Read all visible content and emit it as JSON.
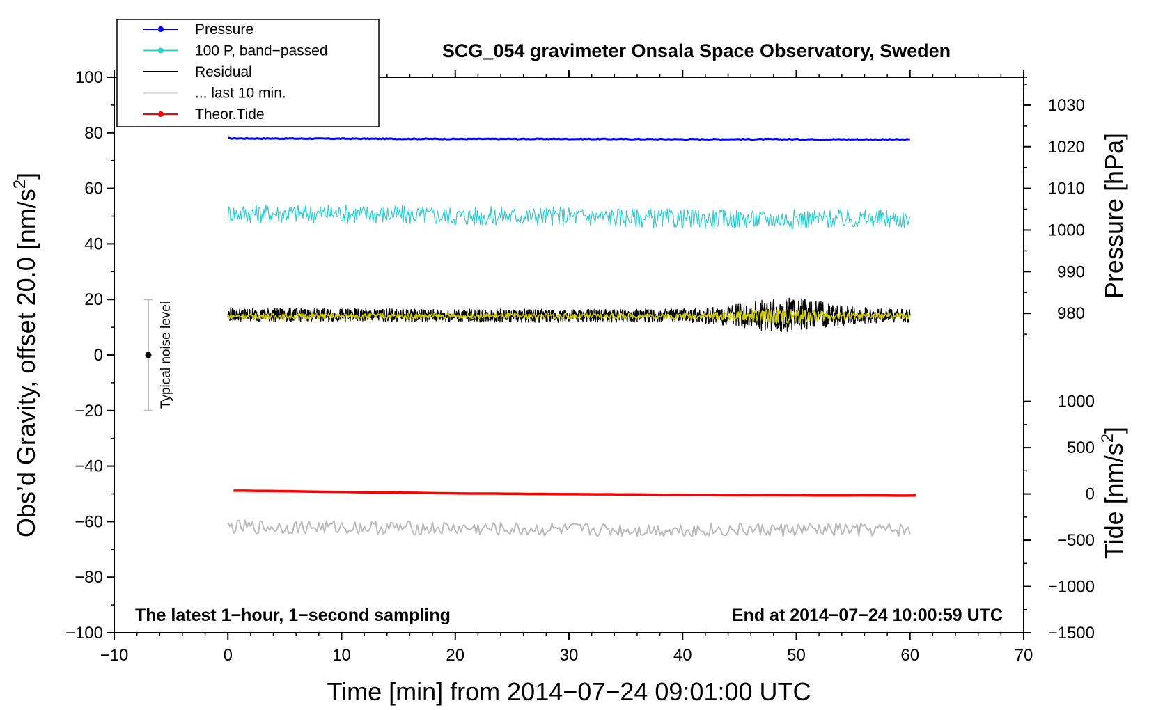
{
  "chart_data": {
    "type": "line",
    "title": "SCG_054 gravimeter Onsala Space Observatory, Sweden",
    "xlabel": "Time [min] from 2014−07−24 09:01:00 UTC",
    "ylabel_left": "Obs’d Gravity, offset 20.0 [nm/s",
    "ylabel_left_sup": "2",
    "ylabel_left_end": "]",
    "ylabel_right_pressure": "Pressure [hPa]",
    "ylabel_right_tide": "Tide [nm/s",
    "ylabel_right_tide_sup": "2",
    "ylabel_right_tide_end": "]",
    "xlim": [
      -10,
      70
    ],
    "ylim": [
      -100,
      100
    ],
    "x_ticks": [
      "−10",
      "0",
      "10",
      "20",
      "30",
      "40",
      "50",
      "60",
      "70"
    ],
    "y_ticks": [
      "−100",
      "−80",
      "−60",
      "−40",
      "−20",
      "0",
      "20",
      "40",
      "60",
      "80",
      "100"
    ],
    "pressure_axis": {
      "ticks": [
        "980",
        "990",
        "1000",
        "1010",
        "1020",
        "1030"
      ],
      "range": [
        980,
        1030
      ]
    },
    "tide_axis": {
      "ticks": [
        "−1500",
        "−1000",
        "−500",
        "0",
        "500",
        "1000"
      ],
      "range": [
        -1500,
        1000
      ]
    },
    "annotation_left": "The latest 1−hour, 1−second sampling",
    "annotation_right": "End at 2014−07−24 10:00:59 UTC",
    "noise_bar": {
      "label": "Typical noise level",
      "x": -7,
      "center": 0,
      "low": -20,
      "high": 20
    },
    "legend": {
      "position": "top-left",
      "entries": [
        {
          "label": "Pressure",
          "color": "#0000ff",
          "marker": true
        },
        {
          "label": "100 P, band−passed",
          "color": "#33cccc",
          "marker": true
        },
        {
          "label": "Residual",
          "color": "#000000",
          "marker": false
        },
        {
          "label": "... last 10 min.",
          "color": "#bbbbbb",
          "marker": false
        },
        {
          "label": "Theor.Tide",
          "color": "#ff0000",
          "marker": true
        }
      ]
    },
    "series": [
      {
        "name": "Pressure",
        "color": "#0000ff",
        "x": [
          0,
          10,
          20,
          30,
          40,
          50,
          60
        ],
        "y": [
          78.0,
          77.9,
          77.8,
          77.8,
          77.7,
          77.7,
          77.6
        ],
        "noise": 0.15
      },
      {
        "name": "100 P, band−passed",
        "color": "#33cccc",
        "x": [
          0,
          10,
          20,
          30,
          40,
          50,
          60
        ],
        "y": [
          51,
          51,
          50,
          50,
          49,
          49,
          49
        ],
        "noise": 3.5
      },
      {
        "name": "Residual",
        "color": "#000000",
        "x": [
          0,
          10,
          20,
          30,
          40,
          45,
          48,
          52,
          56,
          60
        ],
        "y": [
          14.5,
          14.3,
          14.2,
          14.1,
          14.2,
          14.3,
          14.5,
          14.3,
          14.2,
          14.1
        ],
        "noise": 2.4
      },
      {
        "name": "Residual filtered",
        "color": "#cccc00",
        "x": [
          0,
          10,
          20,
          30,
          40,
          50,
          60
        ],
        "y": [
          14.0,
          14.0,
          14.0,
          14.0,
          14.0,
          14.0,
          14.0
        ],
        "noise": 1.0
      },
      {
        "name": "... last 10 min.",
        "color": "#bbbbbb",
        "x": [
          0,
          10,
          20,
          30,
          40,
          50,
          60
        ],
        "y": [
          -62,
          -62,
          -62.5,
          -63,
          -63,
          -63,
          -63
        ],
        "noise": 2.5
      },
      {
        "name": "Theor.Tide",
        "color": "#ff0000",
        "x": [
          0.5,
          10,
          20,
          30,
          40,
          50,
          60.5
        ],
        "y": [
          -48.8,
          -49.3,
          -49.8,
          -50.1,
          -50.3,
          -50.5,
          -50.6
        ],
        "noise": 0.05
      }
    ]
  }
}
